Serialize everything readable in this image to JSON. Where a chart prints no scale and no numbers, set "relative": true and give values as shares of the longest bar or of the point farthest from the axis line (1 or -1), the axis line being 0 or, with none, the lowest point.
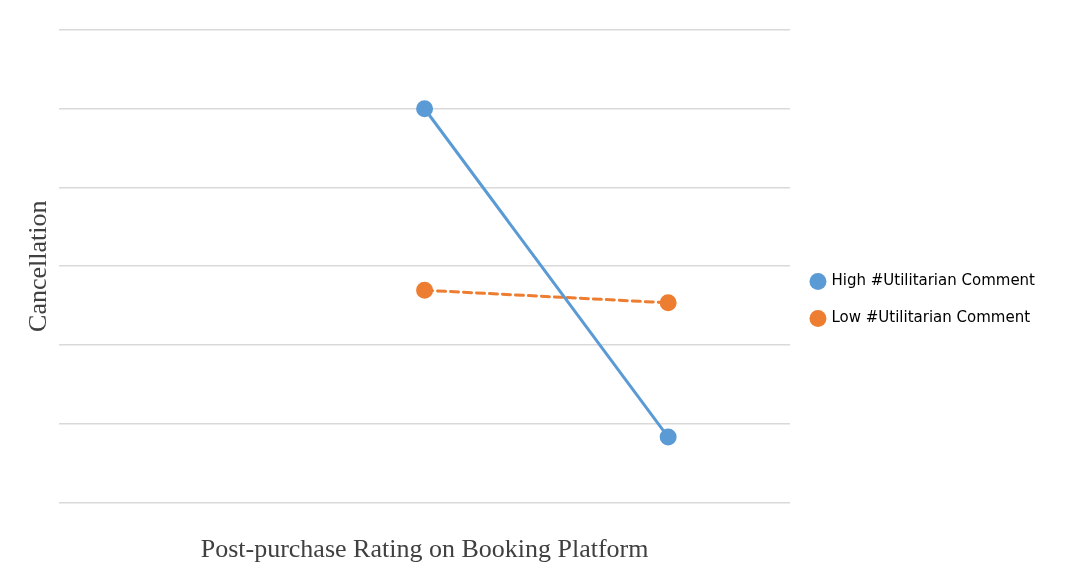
{
  "chart_data": {
    "type": "line",
    "xlabel": "Post-purchase Rating on Booking Platform",
    "ylabel": "Cancellation",
    "categories": [
      null,
      null,
      null
    ],
    "relative": true,
    "grid": "y",
    "legend": "right",
    "marker": "circle",
    "series": [
      {
        "name": "High #Utilitarian Comment",
        "color": "#5b9bd5",
        "line_style": "solid",
        "values": [
          null,
          1,
          0.166
        ]
      },
      {
        "name": "Low #Utilitarian Comment",
        "color": "#ed7d31",
        "line_style": "dashed",
        "values": [
          null,
          0.539,
          0.507
        ]
      }
    ]
  }
}
